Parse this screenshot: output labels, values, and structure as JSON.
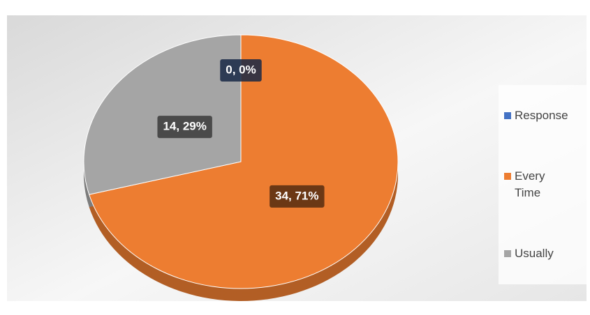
{
  "chart_data": {
    "type": "pie",
    "categories": [
      "Response",
      "Every Time",
      "Usually"
    ],
    "values": [
      0,
      34,
      14
    ],
    "value_labels": [
      "0, 0%",
      "34, 71%",
      "14, 29%"
    ],
    "colors": [
      "#4472c4",
      "#ed7d31",
      "#a5a5a5"
    ],
    "legend": "right"
  }
}
